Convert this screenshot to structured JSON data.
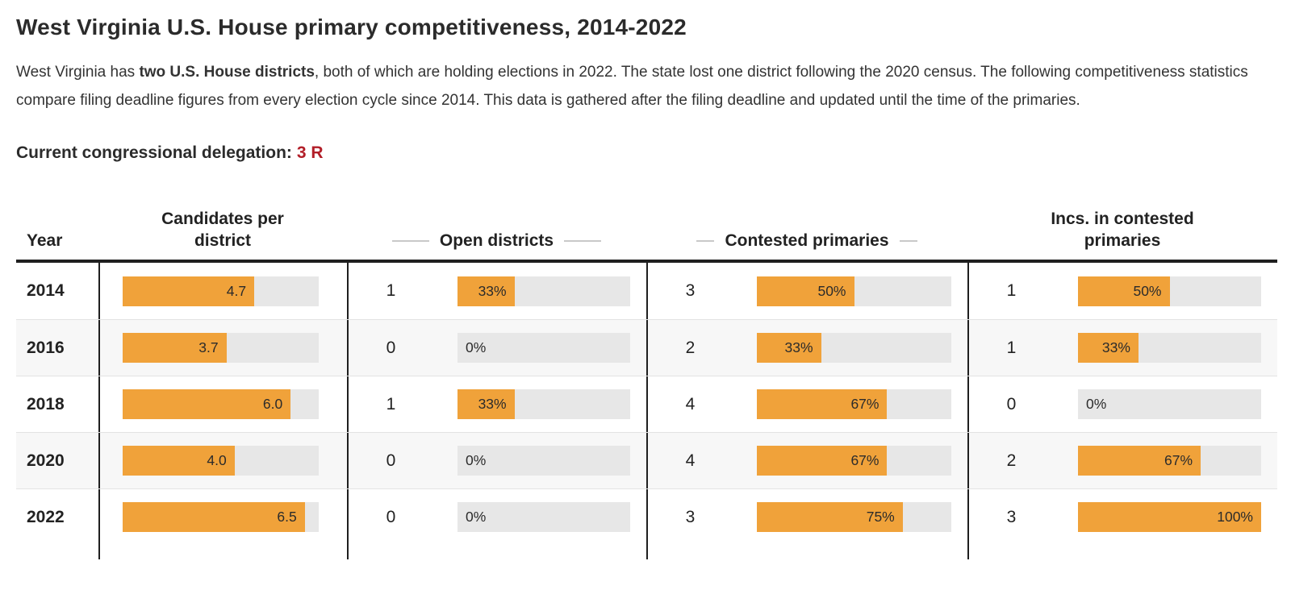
{
  "page": {
    "title": "West Virginia U.S. House primary competitiveness, 2014-2022",
    "intro": {
      "pre_bold": "West Virginia has ",
      "bold": "two U.S. House districts",
      "post_bold": ", both of which are holding elections in 2022. The state lost one district following the 2020 census. The following competitiveness statistics compare filing deadline figures from every election cycle since 2014. This data is gathered after the filing deadline and updated until the time of the primaries."
    },
    "delegation_label": "Current congressional delegation:",
    "delegation_value": "3 R"
  },
  "colors": {
    "bar_orange": "#f0a23a",
    "bar_track": "#e7e7e7",
    "row_stripe": "#f7f7f7",
    "delegation_red": "#b21e28",
    "border_dark": "#1f1f1f",
    "header_dash_gray": "#c9c9c9"
  },
  "table": {
    "columns": [
      {
        "id": "year",
        "label": "Year"
      },
      {
        "id": "candidates_per_district",
        "label": "Candidates per district"
      },
      {
        "id": "open_districts",
        "label": "Open districts"
      },
      {
        "id": "contested_primaries",
        "label": "Contested primaries"
      },
      {
        "id": "incs_in_contested",
        "label": "Incs. in contested primaries"
      }
    ],
    "rows": [
      {
        "year": "2014",
        "cpd": {
          "fill": 67.1,
          "label": "4.7"
        },
        "open_count": "1",
        "open": {
          "fill": 33,
          "label": "33%"
        },
        "contested_count": "3",
        "contested": {
          "fill": 50,
          "label": "50%"
        },
        "incs_count": "1",
        "incs": {
          "fill": 50,
          "label": "50%"
        }
      },
      {
        "year": "2016",
        "cpd": {
          "fill": 52.9,
          "label": "3.7"
        },
        "open_count": "0",
        "open": {
          "fill": 0,
          "label": "0%"
        },
        "contested_count": "2",
        "contested": {
          "fill": 33,
          "label": "33%"
        },
        "incs_count": "1",
        "incs": {
          "fill": 33,
          "label": "33%"
        }
      },
      {
        "year": "2018",
        "cpd": {
          "fill": 85.7,
          "label": "6.0"
        },
        "open_count": "1",
        "open": {
          "fill": 33,
          "label": "33%"
        },
        "contested_count": "4",
        "contested": {
          "fill": 67,
          "label": "67%"
        },
        "incs_count": "0",
        "incs": {
          "fill": 0,
          "label": "0%"
        }
      },
      {
        "year": "2020",
        "cpd": {
          "fill": 57.1,
          "label": "4.0"
        },
        "open_count": "0",
        "open": {
          "fill": 0,
          "label": "0%"
        },
        "contested_count": "4",
        "contested": {
          "fill": 67,
          "label": "67%"
        },
        "incs_count": "2",
        "incs": {
          "fill": 67,
          "label": "67%"
        }
      },
      {
        "year": "2022",
        "cpd": {
          "fill": 92.9,
          "label": "6.5"
        },
        "open_count": "0",
        "open": {
          "fill": 0,
          "label": "0%"
        },
        "contested_count": "3",
        "contested": {
          "fill": 75,
          "label": "75%"
        },
        "incs_count": "3",
        "incs": {
          "fill": 100,
          "label": "100%"
        }
      }
    ]
  },
  "chart_data": {
    "type": "table",
    "title": "West Virginia U.S. House primary competitiveness, 2014-2022",
    "columns": [
      "Year",
      "Candidates per district",
      "Open districts (count)",
      "Open districts (%)",
      "Contested primaries (count)",
      "Contested primaries (%)",
      "Incs. in contested primaries (count)",
      "Incs. in contested primaries (%)"
    ],
    "rows": [
      [
        "2014",
        4.7,
        1,
        33,
        3,
        50,
        1,
        50
      ],
      [
        "2016",
        3.7,
        0,
        0,
        2,
        33,
        1,
        33
      ],
      [
        "2018",
        6.0,
        1,
        33,
        4,
        67,
        0,
        0
      ],
      [
        "2020",
        4.0,
        0,
        0,
        4,
        67,
        2,
        67
      ],
      [
        "2022",
        6.5,
        0,
        0,
        3,
        75,
        3,
        100
      ]
    ],
    "bar_scales": {
      "candidates_per_district_max": 7,
      "percent_columns_max": 100
    },
    "bar_color": "#f0a23a"
  }
}
